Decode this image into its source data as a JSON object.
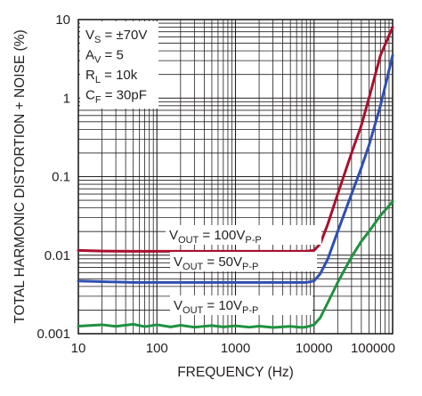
{
  "chart_data": {
    "type": "line",
    "xlabel": "FREQUENCY (Hz)",
    "ylabel": "TOTAL HARMONIC DISTORTION + NOISE (%)",
    "x_scale": "log",
    "y_scale": "log",
    "xlim": [
      10,
      100000
    ],
    "ylim": [
      0.001,
      10
    ],
    "x_ticks": [
      "10",
      "100",
      "1000",
      "10000",
      "100000"
    ],
    "y_ticks": [
      "0.001",
      "0.01",
      "0.1",
      "1",
      "10"
    ],
    "grid": true,
    "conditions": [
      {
        "main": "V",
        "sub": "S",
        "rest": " = ±70V"
      },
      {
        "main": "A",
        "sub": "V",
        "rest": " = 5"
      },
      {
        "main": "R",
        "sub": "L",
        "rest": " = 10k"
      },
      {
        "main": "C",
        "sub": "F",
        "rest": " = 30pF"
      }
    ],
    "series": [
      {
        "name": "VOUT = 100VP-P",
        "label": {
          "pre": "V",
          "sub1": "OUT",
          "mid": " = 100V",
          "sub2": "P-P"
        },
        "color": "#a8102e",
        "x": [
          10,
          20,
          50,
          100,
          200,
          500,
          1000,
          2000,
          5000,
          8000,
          10000,
          12000,
          15000,
          20000,
          30000,
          40000,
          50000,
          70000,
          100000
        ],
        "y": [
          0.0115,
          0.0113,
          0.0112,
          0.0112,
          0.0112,
          0.0112,
          0.0112,
          0.0112,
          0.0112,
          0.0112,
          0.0115,
          0.014,
          0.025,
          0.06,
          0.2,
          0.45,
          1.0,
          3.5,
          8.0
        ]
      },
      {
        "name": "VOUT = 50VP-P",
        "label": {
          "pre": "V",
          "sub1": "OUT",
          "mid": " = 50V",
          "sub2": "P-P"
        },
        "color": "#2f4fb0",
        "x": [
          10,
          20,
          50,
          100,
          200,
          500,
          1000,
          2000,
          5000,
          8000,
          10000,
          12000,
          15000,
          20000,
          30000,
          40000,
          50000,
          70000,
          100000
        ],
        "y": [
          0.0047,
          0.0046,
          0.0045,
          0.0045,
          0.0045,
          0.0045,
          0.0045,
          0.0045,
          0.0045,
          0.0045,
          0.0047,
          0.0058,
          0.009,
          0.02,
          0.06,
          0.13,
          0.25,
          0.8,
          3.5
        ]
      },
      {
        "name": "VOUT = 10VP-P",
        "label": {
          "pre": "V",
          "sub1": "OUT",
          "mid": " = 10V",
          "sub2": "P-P"
        },
        "color": "#1f9140",
        "x": [
          10,
          20,
          30,
          50,
          70,
          100,
          150,
          200,
          300,
          500,
          700,
          1000,
          1500,
          2000,
          3000,
          5000,
          7000,
          8000,
          10000,
          12000,
          15000,
          20000,
          30000,
          40000,
          50000,
          70000,
          100000
        ],
        "y": [
          0.00125,
          0.0013,
          0.00124,
          0.00132,
          0.00123,
          0.0013,
          0.00122,
          0.00128,
          0.00121,
          0.00127,
          0.00122,
          0.00126,
          0.00121,
          0.00125,
          0.0012,
          0.00124,
          0.0012,
          0.00122,
          0.0013,
          0.0016,
          0.0025,
          0.0045,
          0.0095,
          0.015,
          0.02,
          0.032,
          0.048
        ]
      }
    ]
  }
}
